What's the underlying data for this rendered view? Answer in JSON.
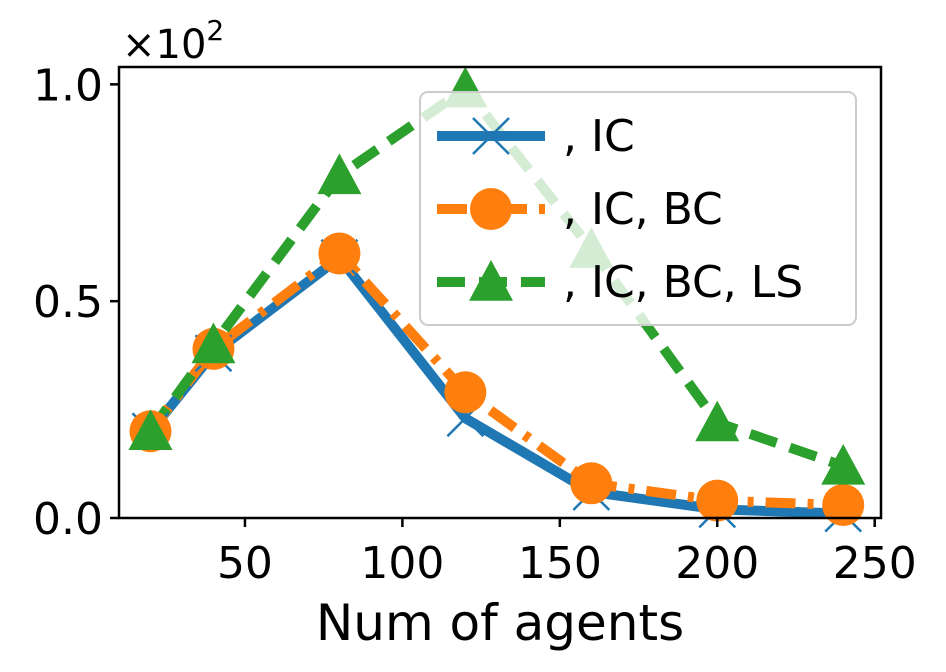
{
  "chart_data": {
    "type": "line",
    "xlabel": "Num of agents",
    "ylabel": "",
    "xlim": [
      10,
      252
    ],
    "ylim": [
      0,
      1.04
    ],
    "x_ticks": [
      50,
      100,
      150,
      200,
      250
    ],
    "y_ticks": [
      0.0,
      0.5,
      1.0
    ],
    "y_tick_labels": [
      "0.0",
      "0.5",
      "1.0"
    ],
    "y_multiplier": "×10",
    "y_multiplier_exp": "2",
    "grid": false,
    "legend_position": "upper-right",
    "x": [
      20,
      40,
      80,
      120,
      160,
      200,
      240
    ],
    "series": [
      {
        "name": ", IC",
        "color": "#1f77b4",
        "linestyle": "solid",
        "marker": "x",
        "values": [
          0.2,
          0.38,
          0.6,
          0.23,
          0.06,
          0.02,
          0.01
        ]
      },
      {
        "name": ", IC, BC",
        "color": "#ff7f0e",
        "linestyle": "dashdot",
        "marker": "circle",
        "values": [
          0.2,
          0.39,
          0.61,
          0.29,
          0.08,
          0.04,
          0.03
        ]
      },
      {
        "name": ", IC, BC, LS",
        "color": "#2ca02c",
        "linestyle": "dashed",
        "marker": "triangle",
        "values": [
          0.2,
          0.4,
          0.79,
          0.99,
          0.62,
          0.22,
          0.12
        ]
      }
    ]
  }
}
